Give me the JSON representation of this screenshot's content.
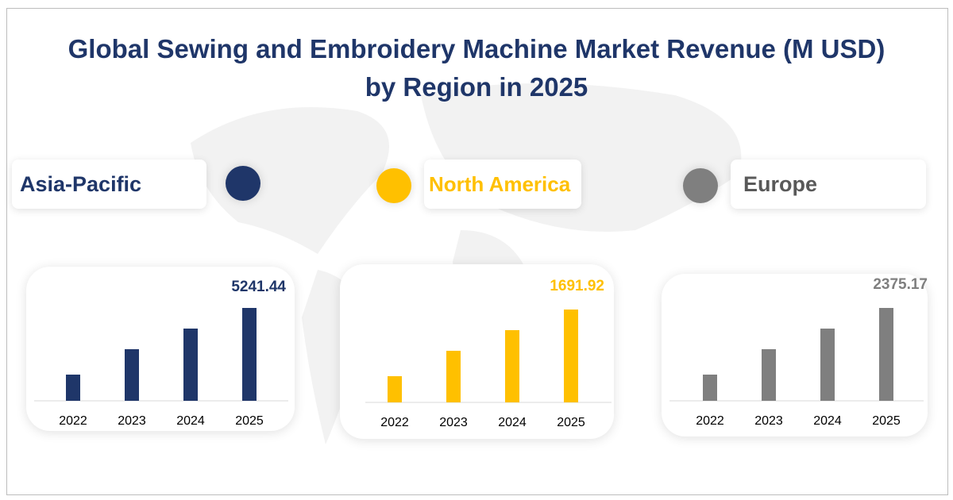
{
  "title_line1": "Global Sewing and Embroidery Machine Market Revenue (M USD)",
  "title_line2": "by Region in 2025",
  "chart_data": [
    {
      "type": "bar",
      "region": "Asia-Pacific",
      "color": "#1f3669",
      "categories": [
        "2022",
        "2023",
        "2024",
        "2025"
      ],
      "values": [
        1478,
        2912,
        4077,
        5241.44
      ],
      "value_label": "5241.44"
    },
    {
      "type": "bar",
      "region": "North America",
      "color": "#ffc000",
      "categories": [
        "2022",
        "2023",
        "2024",
        "2025"
      ],
      "values": [
        477,
        940,
        1316,
        1691.92
      ],
      "value_label": "1691.92"
    },
    {
      "type": "bar",
      "region": "Europe",
      "color": "#7f7f7f",
      "categories": [
        "2022",
        "2023",
        "2024",
        "2025"
      ],
      "values": [
        670,
        1320,
        1847,
        2375.17
      ],
      "value_label": "2375.17"
    }
  ]
}
